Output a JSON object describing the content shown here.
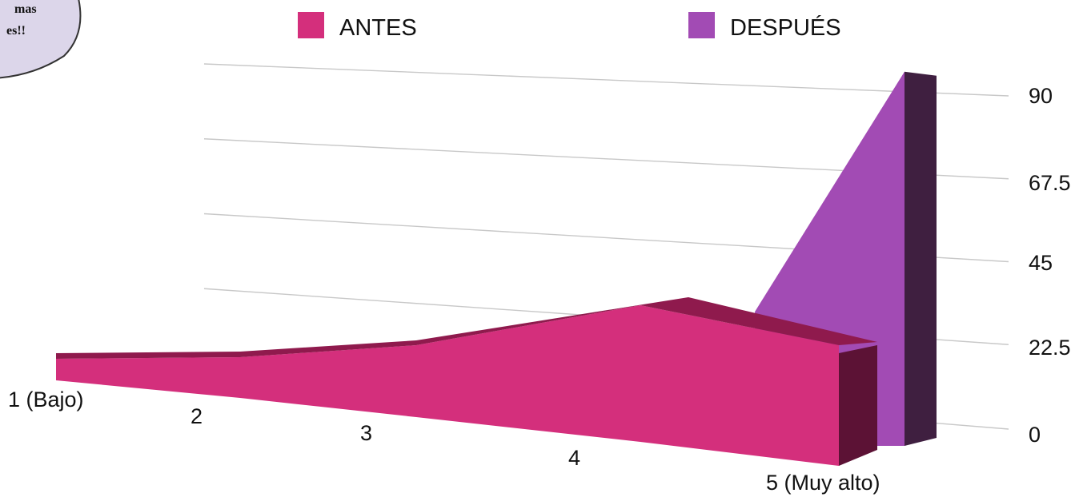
{
  "callout": {
    "line1": "mas",
    "line2": "es!!"
  },
  "legend": {
    "position": "top"
  },
  "colors": {
    "antes": "#d42f7c",
    "antes_top": "#8f1a4d",
    "antes_side": "#5c1235",
    "despues": "#a24bb4",
    "despues_side": "#3f1f40",
    "grid": "#c8c8c8",
    "callout_fill": "#dcd6ea"
  },
  "chart_data": {
    "type": "area",
    "title": "",
    "xlabel": "",
    "ylabel": "",
    "categories": [
      "1 (Bajo)",
      "2",
      "3",
      "4",
      "5 (Muy alto)"
    ],
    "yticks": [
      "0",
      "22.5",
      "45",
      "67.5",
      "90"
    ],
    "ylim": [
      0,
      90
    ],
    "grid": true,
    "series": [
      {
        "name": "ANTES",
        "values": [
          5,
          5,
          10,
          24,
          17
        ]
      },
      {
        "name": "DESPUÉS",
        "values": [
          0,
          0,
          0,
          2,
          86
        ]
      }
    ]
  }
}
